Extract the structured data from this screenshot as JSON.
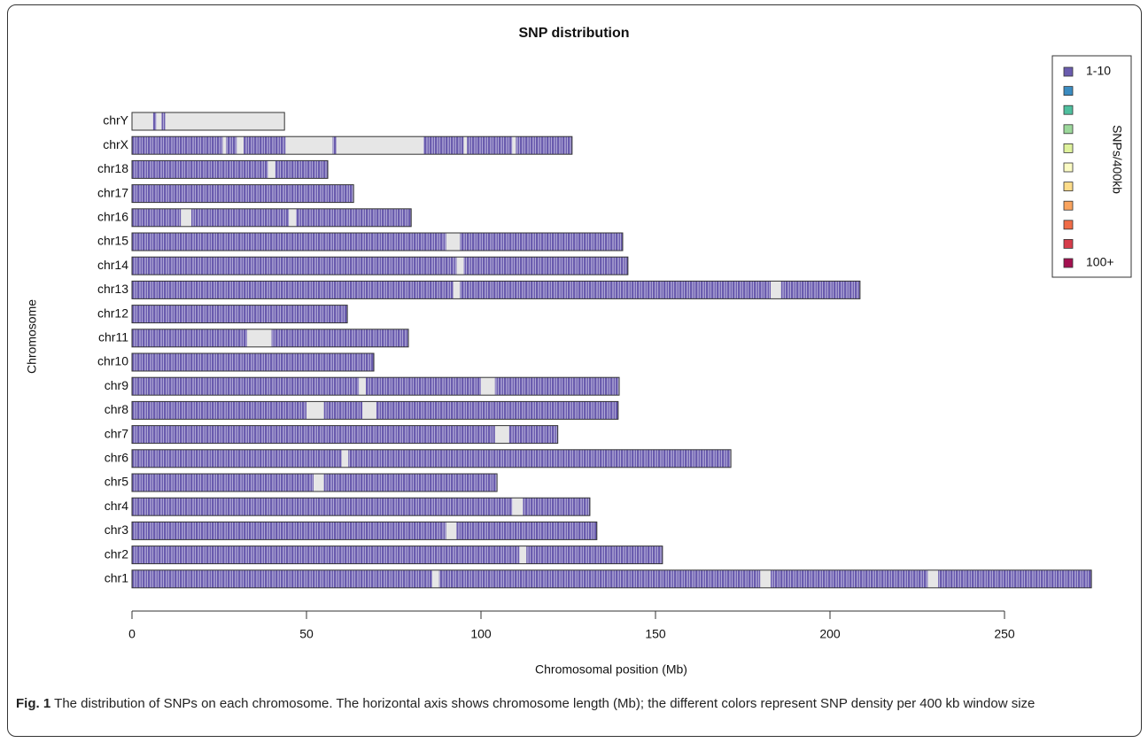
{
  "chart_data": {
    "type": "ideogram",
    "title": "SNP distribution",
    "xlabel": "Chromosomal position (Mb)",
    "ylabel": "Chromosome",
    "xlim": [
      0,
      275
    ],
    "xticks": [
      0,
      50,
      100,
      150,
      200,
      250
    ],
    "categories": [
      "chrY",
      "chrX",
      "chr18",
      "chr17",
      "chr16",
      "chr15",
      "chr14",
      "chr13",
      "chr12",
      "chr11",
      "chr10",
      "chr9",
      "chr8",
      "chr7",
      "chr6",
      "chr5",
      "chr4",
      "chr3",
      "chr2",
      "chr1"
    ],
    "values": [
      43.7,
      126.1,
      56.1,
      63.5,
      80,
      140.6,
      142.1,
      208.6,
      61.7,
      79.2,
      69.3,
      139.6,
      139.3,
      122,
      171.6,
      104.6,
      131.2,
      133.2,
      152,
      274.9
    ],
    "gaps": [
      [
        [
          0,
          6
        ],
        [
          7,
          8.5
        ],
        [
          9.5,
          43.7
        ]
      ],
      [
        [
          26,
          27
        ],
        [
          30,
          32
        ],
        [
          44,
          57.5
        ],
        [
          58.5,
          83.5
        ],
        [
          95,
          96
        ],
        [
          109,
          110
        ]
      ],
      [
        [
          39,
          41
        ]
      ],
      [],
      [
        [
          14,
          17
        ],
        [
          45,
          47
        ]
      ],
      [
        [
          90,
          94
        ]
      ],
      [
        [
          93,
          95
        ]
      ],
      [
        [
          92,
          94
        ],
        [
          183,
          186
        ]
      ],
      [],
      [
        [
          33,
          40
        ]
      ],
      [],
      [
        [
          65,
          67
        ],
        [
          100,
          104
        ]
      ],
      [
        [
          50,
          55
        ],
        [
          66,
          70
        ]
      ],
      [
        [
          104,
          108
        ]
      ],
      [
        [
          60,
          62
        ]
      ],
      [
        [
          52,
          55
        ]
      ],
      [
        [
          109,
          112
        ]
      ],
      [
        [
          90,
          93
        ]
      ],
      [
        [
          111,
          113
        ]
      ],
      [
        [
          86,
          88
        ],
        [
          180,
          183
        ],
        [
          228,
          231
        ]
      ]
    ],
    "color": "#6a5cae",
    "gap_color": "#e6e6e6",
    "legend": {
      "title": "SNPs/400kb",
      "colors": [
        "#6a5cae",
        "#3b8cc1",
        "#4fbf9e",
        "#9cd89b",
        "#dff29c",
        "#fbfbc4",
        "#fddc8a",
        "#f9a35e",
        "#f06b46",
        "#d63c4a",
        "#a3104f"
      ],
      "labels": [
        "1-10",
        null,
        null,
        null,
        null,
        null,
        null,
        null,
        null,
        null,
        "100+"
      ]
    },
    "caption": {
      "label": "Fig. 1",
      "text": "The distribution of SNPs on each chromosome. The horizontal axis shows chromosome length (Mb); the different colors represent SNP density per 400 kb window size"
    }
  }
}
